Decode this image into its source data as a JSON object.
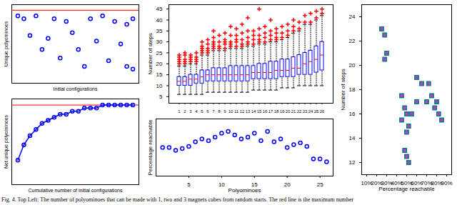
{
  "caption": "Fig. 4. Top Left: The number of polyominoes that can be made with 1, two and 3 magnets cubes from random starts. The red line is the maximum number",
  "chart_data": [
    {
      "type": "scatter",
      "x_label": "Initial configurations",
      "y_label": "Unique polyominoes",
      "x": [
        1,
        2,
        4,
        7,
        9,
        13,
        15,
        17,
        19,
        20,
        3,
        6,
        10,
        14,
        18,
        5,
        11,
        16,
        12,
        8,
        19,
        20
      ],
      "values": [
        24,
        23,
        24,
        23,
        22,
        23,
        24,
        22,
        21,
        23,
        17,
        16,
        18,
        15,
        14,
        12,
        12,
        8,
        6,
        9,
        6,
        5
      ],
      "color": "#0000ff",
      "marker": "circle",
      "xlim": [
        0,
        21
      ],
      "ylim": [
        0,
        28
      ],
      "tick_labels": false,
      "hline": 26,
      "hline_color": "#ff0000"
    },
    {
      "type": "line",
      "x_label": "Cumulative number of initial configurations",
      "y_label": "Net unique polyominoes",
      "x": [
        1,
        2,
        3,
        4,
        5,
        6,
        7,
        8,
        9,
        10,
        11,
        12,
        13,
        14,
        15,
        16,
        17,
        18,
        19,
        20
      ],
      "values": [
        8,
        13,
        16,
        18,
        20,
        21,
        22,
        23,
        23,
        24,
        24,
        25,
        25,
        25,
        26,
        26,
        26,
        26,
        26,
        26
      ],
      "color": "#0000ff",
      "marker": "circle",
      "xlim": [
        0,
        21
      ],
      "ylim": [
        0,
        28
      ],
      "tick_labels": false,
      "hline": 26,
      "hline_color": "#ff0000"
    },
    {
      "type": "box",
      "y_label": "Number of steps",
      "categories": [
        1,
        2,
        3,
        4,
        5,
        6,
        7,
        8,
        9,
        10,
        11,
        12,
        13,
        14,
        15,
        16,
        17,
        18,
        19,
        20,
        21,
        22,
        23,
        24,
        25,
        26
      ],
      "color": "#0000ff",
      "boxes": {
        "min": [
          6,
          6,
          6,
          6,
          6,
          7,
          7,
          7,
          7,
          7,
          7,
          7,
          7,
          8,
          8,
          8,
          8,
          8,
          9,
          9,
          9,
          10,
          10,
          10,
          10,
          10
        ],
        "q1": [
          10,
          10,
          10,
          11,
          11,
          12,
          12,
          12,
          12,
          12,
          12,
          12,
          12,
          13,
          13,
          13,
          13,
          13,
          14,
          14,
          14,
          15,
          15,
          15,
          16,
          17
        ],
        "q3": [
          14,
          14,
          15,
          15,
          17,
          17,
          18,
          18,
          18,
          19,
          19,
          19,
          19,
          19,
          20,
          20,
          21,
          21,
          22,
          22,
          23,
          24,
          25,
          26,
          28,
          30
        ],
        "max": [
          19,
          19,
          20,
          20,
          24,
          24,
          26,
          26,
          26,
          27,
          27,
          27,
          28,
          28,
          29,
          29,
          30,
          30,
          31,
          32,
          34,
          35,
          38,
          38,
          40,
          42
        ]
      },
      "medians": {
        "color": "#ff0000",
        "values": [
          12,
          12,
          13,
          13,
          14,
          15,
          15,
          15,
          15,
          15,
          15,
          15,
          15,
          16,
          16,
          16,
          16,
          17,
          17,
          17,
          18,
          18,
          20,
          21,
          22,
          24
        ]
      },
      "outliers": {
        "color": "#ff0000",
        "marker": "plus",
        "values": [
          [
            20,
            21,
            22,
            23,
            24
          ],
          [
            20,
            21,
            22,
            24,
            25
          ],
          [
            21,
            22,
            23,
            24
          ],
          [
            21,
            22,
            23,
            25
          ],
          [
            25,
            26,
            27,
            28,
            30
          ],
          [
            25,
            26,
            27,
            29,
            31
          ],
          [
            27,
            28,
            29,
            30,
            32,
            35
          ],
          [
            27,
            28,
            30,
            33
          ],
          [
            27,
            29,
            30,
            31,
            34
          ],
          [
            28,
            29,
            30,
            33,
            37
          ],
          [
            28,
            30,
            31,
            33,
            36
          ],
          [
            28,
            29,
            31,
            34,
            38
          ],
          [
            29,
            30,
            32,
            35,
            41
          ],
          [
            29,
            31,
            33,
            35
          ],
          [
            30,
            31,
            33,
            36,
            45
          ],
          [
            30,
            32,
            34,
            37
          ],
          [
            31,
            33,
            35,
            40
          ],
          [
            31,
            32,
            34,
            36
          ],
          [
            32,
            34,
            37
          ],
          [
            33,
            35,
            38
          ],
          [
            35,
            37,
            40
          ],
          [
            36,
            39
          ],
          [
            39,
            42
          ],
          [
            39,
            43
          ],
          [
            41,
            44
          ],
          [
            43,
            45
          ]
        ]
      },
      "ylim": [
        2,
        47
      ],
      "yticks": [
        5,
        10,
        15,
        20,
        25,
        30,
        35,
        40,
        45
      ]
    },
    {
      "type": "scatter",
      "x_label": "Polyominoes",
      "y_label": "Percentage reachable",
      "x": [
        1,
        2,
        3,
        4,
        5,
        6,
        7,
        8,
        9,
        10,
        11,
        12,
        13,
        14,
        15,
        16,
        17,
        18,
        19,
        20,
        21,
        22,
        23,
        24,
        25,
        26
      ],
      "values": [
        50,
        50,
        45,
        48,
        52,
        60,
        65,
        62,
        68,
        75,
        78,
        72,
        65,
        68,
        75,
        62,
        78,
        60,
        65,
        50,
        55,
        58,
        52,
        30,
        30,
        25
      ],
      "color": "#0000ff",
      "marker": "circle",
      "xlim": [
        0,
        27
      ],
      "xticks": [
        5,
        10,
        15,
        20,
        25
      ],
      "ylim": [
        0,
        100
      ],
      "tick_labels": "x"
    },
    {
      "type": "scatter",
      "x_label": "Percentage reachable",
      "y_label": "Number of steps",
      "x": [
        25,
        28,
        30,
        28,
        45,
        48,
        50,
        52,
        50,
        55,
        45,
        48,
        50,
        52,
        60,
        65,
        72,
        75,
        70,
        80,
        78,
        82,
        85,
        60
      ],
      "values": [
        23,
        22.5,
        21,
        20.5,
        17.5,
        16.5,
        16,
        15,
        14.5,
        16,
        15.5,
        13,
        12.5,
        12,
        19,
        18.5,
        18.5,
        17.5,
        17,
        17,
        16.5,
        16,
        15.5,
        17
      ],
      "color": "#cc33cc",
      "marker": "square",
      "xlim": [
        5,
        95
      ],
      "ylim": [
        11,
        25
      ],
      "xticks": [
        {
          "value": 10,
          "label": "10%"
        },
        {
          "value": 20,
          "label": "20%"
        },
        {
          "value": 30,
          "label": "30%"
        },
        {
          "value": 40,
          "label": "40%"
        },
        {
          "value": 50,
          "label": "50%"
        },
        {
          "value": 60,
          "label": "60%"
        },
        {
          "value": 70,
          "label": "70%"
        },
        {
          "value": 80,
          "label": "80%"
        },
        {
          "value": 90,
          "label": "90%"
        }
      ],
      "yticks": [
        12,
        14,
        16,
        18,
        20,
        22,
        24
      ]
    }
  ]
}
